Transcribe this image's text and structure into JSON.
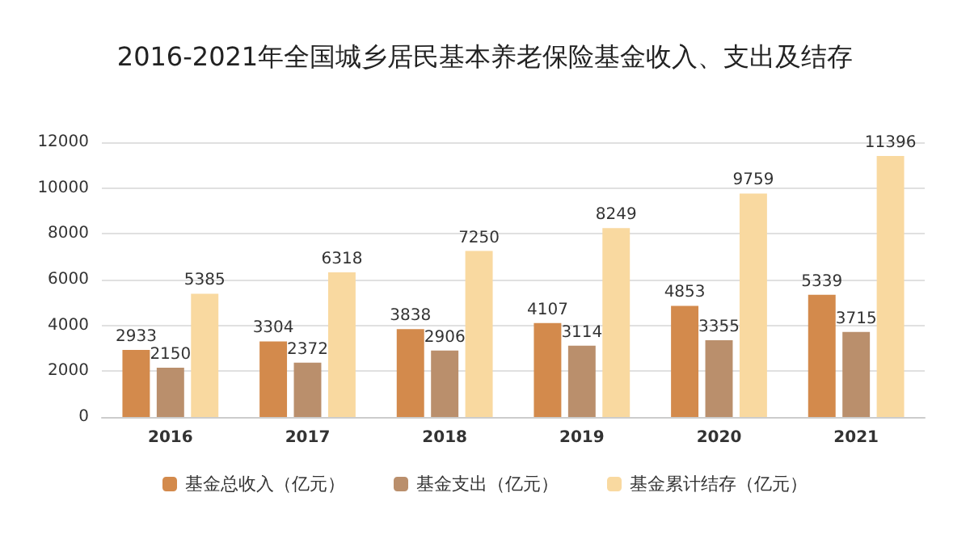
{
  "chart_data": {
    "type": "bar",
    "title": "2016-2021年全国城乡居民基本养老保险基金收入、支出及结存",
    "categories": [
      "2016",
      "2017",
      "2018",
      "2019",
      "2020",
      "2021"
    ],
    "series": [
      {
        "name": "基金总收入（亿元）",
        "color": "#d38a4c",
        "values": [
          2933,
          3304,
          3838,
          4107,
          4853,
          5339
        ]
      },
      {
        "name": "基金支出（亿元）",
        "color": "#ba8f6c",
        "values": [
          2150,
          2372,
          2906,
          3114,
          3355,
          3715
        ]
      },
      {
        "name": "基金累计结存（亿元）",
        "color": "#f9d9a0",
        "values": [
          5385,
          6318,
          7250,
          8249,
          9759,
          11396
        ]
      }
    ],
    "ylim": [
      0,
      12000
    ],
    "yticks": [
      0,
      2000,
      4000,
      6000,
      8000,
      10000,
      12000
    ],
    "grid": "y",
    "legend": "bottom",
    "data_labels": true
  }
}
